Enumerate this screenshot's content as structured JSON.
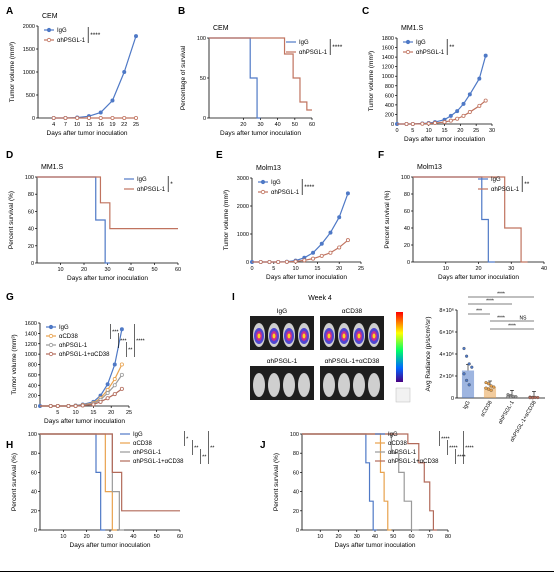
{
  "colors": {
    "igg": "#4f79c6",
    "hpsgl": "#c0735f",
    "cd38": "#e8a24e",
    "anti_psgl": "#9a9a9a",
    "combo": "#b26a5a"
  },
  "chart_data": [
    {
      "id": "A",
      "type": "line",
      "title": "CEM",
      "xlabel": "Days after tumor inoculation",
      "ylabel": "Tumor volume (mm³)",
      "xlim": [
        0,
        25
      ],
      "ylim": [
        0,
        2000
      ],
      "xticks": [
        4,
        7,
        10,
        13,
        16,
        19,
        22,
        25
      ],
      "yticks": [
        0,
        500,
        1000,
        1500,
        2000
      ],
      "series": [
        {
          "name": "IgG",
          "x": [
            4,
            7,
            10,
            13,
            16,
            19,
            22,
            25
          ],
          "y": [
            0,
            0,
            10,
            40,
            120,
            380,
            1000,
            1780
          ]
        },
        {
          "name": "αhPSGL-1",
          "x": [
            4,
            7,
            10,
            13,
            16,
            19,
            22,
            25
          ],
          "y": [
            0,
            0,
            0,
            0,
            0,
            0,
            0,
            0
          ]
        }
      ],
      "significance": "****"
    },
    {
      "id": "B",
      "type": "line",
      "title": "CEM",
      "xlabel": "Days after tumor inoculation",
      "ylabel": "Percentage of survival",
      "xlim": [
        0,
        60
      ],
      "ylim": [
        0,
        100
      ],
      "xticks": [
        20,
        30,
        40,
        50,
        60
      ],
      "yticks": [
        0,
        50,
        100
      ],
      "series": [
        {
          "name": "IgG",
          "x": [
            0,
            24,
            24,
            28,
            28,
            30
          ],
          "y": [
            100,
            100,
            50,
            50,
            0,
            0
          ]
        },
        {
          "name": "αhPSGL-1",
          "x": [
            0,
            44,
            44,
            49,
            49,
            53,
            53,
            57,
            57,
            62
          ],
          "y": [
            100,
            100,
            80,
            80,
            50,
            50,
            20,
            20,
            10,
            10
          ]
        }
      ],
      "significance": "****"
    },
    {
      "id": "C",
      "type": "line",
      "title": "MM1.S",
      "xlabel": "Days after tumor inoculation",
      "ylabel": "Tumor volume (mm³)",
      "xlim": [
        0,
        30
      ],
      "ylim": [
        0,
        1800
      ],
      "xticks": [
        0,
        5,
        10,
        15,
        20,
        25,
        30
      ],
      "yticks": [
        0,
        200,
        400,
        600,
        800,
        1000,
        1200,
        1400,
        1600,
        1800
      ],
      "series": [
        {
          "name": "IgG",
          "x": [
            0,
            3,
            5,
            8,
            10,
            12,
            15,
            17,
            19,
            21,
            23,
            26,
            28
          ],
          "y": [
            0,
            0,
            0,
            10,
            20,
            40,
            90,
            170,
            270,
            420,
            620,
            950,
            1430
          ]
        },
        {
          "name": "αhPSGL-1",
          "x": [
            0,
            3,
            5,
            8,
            10,
            12,
            15,
            17,
            19,
            21,
            23,
            26,
            28
          ],
          "y": [
            0,
            0,
            0,
            5,
            10,
            20,
            40,
            70,
            110,
            170,
            250,
            380,
            490
          ]
        }
      ],
      "significance": "**"
    },
    {
      "id": "D",
      "type": "line",
      "title": "MM1.S",
      "xlabel": "Days after tumor inoculation",
      "ylabel": "Percent survival (%)",
      "xlim": [
        0,
        60
      ],
      "ylim": [
        0,
        100
      ],
      "xticks": [
        10,
        20,
        30,
        40,
        50,
        60
      ],
      "yticks": [
        0,
        20,
        40,
        60,
        80,
        100
      ],
      "series": [
        {
          "name": "IgG",
          "x": [
            0,
            25,
            25,
            29,
            29,
            31
          ],
          "y": [
            100,
            100,
            50,
            50,
            0,
            0
          ]
        },
        {
          "name": "αhPSGL-1",
          "x": [
            0,
            27,
            27,
            31,
            31,
            60
          ],
          "y": [
            100,
            100,
            70,
            70,
            40,
            40
          ]
        }
      ],
      "significance": "*"
    },
    {
      "id": "E",
      "type": "line",
      "title": "Molm13",
      "xlabel": "Days after tumor inoculation",
      "ylabel": "Tumor volume (mm³)",
      "xlim": [
        0,
        25
      ],
      "ylim": [
        0,
        3000
      ],
      "xticks": [
        0,
        5,
        10,
        15,
        20,
        25
      ],
      "yticks": [
        0,
        1000,
        2000,
        3000
      ],
      "series": [
        {
          "name": "IgG",
          "x": [
            0,
            2,
            4,
            6,
            8,
            10,
            12,
            14,
            16,
            18,
            20,
            22
          ],
          "y": [
            0,
            0,
            0,
            0,
            10,
            50,
            150,
            330,
            650,
            1050,
            1600,
            2450
          ]
        },
        {
          "name": "αhPSGL-1",
          "x": [
            0,
            2,
            4,
            6,
            8,
            10,
            12,
            14,
            16,
            18,
            20,
            22
          ],
          "y": [
            0,
            0,
            0,
            0,
            5,
            20,
            60,
            120,
            220,
            330,
            520,
            780
          ]
        }
      ],
      "significance": "****"
    },
    {
      "id": "F",
      "type": "line",
      "title": "Molm13",
      "xlabel": "Days after tumor inoculation",
      "ylabel": "Percent survival (%)",
      "xlim": [
        0,
        40
      ],
      "ylim": [
        0,
        100
      ],
      "xticks": [
        10,
        20,
        30,
        40
      ],
      "yticks": [
        0,
        20,
        40,
        60,
        80,
        100
      ],
      "series": [
        {
          "name": "IgG",
          "x": [
            0,
            21,
            21,
            23,
            23,
            25
          ],
          "y": [
            100,
            100,
            50,
            50,
            0,
            0
          ]
        },
        {
          "name": "αhPSGL-1",
          "x": [
            0,
            28,
            28,
            33,
            33,
            35
          ],
          "y": [
            100,
            100,
            40,
            40,
            0,
            0
          ]
        }
      ],
      "significance": "**"
    },
    {
      "id": "G",
      "type": "line",
      "title": "",
      "xlabel": "Days after tumor inoculation",
      "ylabel": "Tumor volume (mm³)",
      "xlim": [
        0,
        25
      ],
      "ylim": [
        0,
        1600
      ],
      "xticks": [
        5,
        10,
        15,
        20,
        25
      ],
      "yticks": [
        0,
        200,
        400,
        600,
        800,
        1000,
        1200,
        1400,
        1600
      ],
      "series": [
        {
          "name": "IgG",
          "x": [
            0,
            3,
            5,
            8,
            10,
            12,
            15,
            17,
            19,
            21,
            23
          ],
          "y": [
            0,
            0,
            0,
            0,
            10,
            30,
            80,
            200,
            420,
            800,
            1480
          ]
        },
        {
          "name": "αCD38",
          "x": [
            0,
            3,
            5,
            8,
            10,
            12,
            15,
            17,
            19,
            21,
            23
          ],
          "y": [
            0,
            0,
            0,
            0,
            5,
            20,
            60,
            150,
            310,
            520,
            800
          ]
        },
        {
          "name": "αhPSGL-1",
          "x": [
            0,
            3,
            5,
            8,
            10,
            12,
            15,
            17,
            19,
            21,
            23
          ],
          "y": [
            0,
            0,
            0,
            0,
            5,
            15,
            50,
            120,
            250,
            400,
            600
          ]
        },
        {
          "name": "αhPSGL-1+αCD38",
          "x": [
            0,
            3,
            5,
            8,
            10,
            12,
            15,
            17,
            19,
            21,
            23
          ],
          "y": [
            0,
            0,
            0,
            0,
            0,
            10,
            30,
            80,
            150,
            230,
            330
          ]
        }
      ],
      "significance": [
        "***",
        "***",
        "**",
        "****"
      ]
    },
    {
      "id": "I",
      "type": "bar",
      "title": "",
      "xlabel": "",
      "ylabel": "Avg Radiance (p/s/cm²/sr)",
      "categories": [
        "IgG",
        "αCD38",
        "αhPSGL-1",
        "αhPSGL-1+αCD38"
      ],
      "values": [
        2500000,
        1000000,
        150000,
        50000
      ],
      "points": [
        [
          4500000,
          3800000,
          3100000,
          2800000,
          2200000,
          1600000,
          1200000
        ],
        [
          1400000,
          1300000,
          1100000,
          1000000,
          900000,
          800000,
          700000
        ],
        [
          300000,
          220000,
          150000,
          120000,
          100000,
          80000
        ],
        [
          80000,
          60000,
          50000,
          40000,
          30000,
          20000
        ]
      ],
      "ylim": [
        0,
        8000000
      ],
      "yticks": [
        0,
        2000000,
        4000000,
        6000000,
        8000000
      ],
      "yticklabels": [
        "0",
        "2×10⁶",
        "4×10⁶",
        "6×10⁶",
        "8×10⁶"
      ],
      "comparisons": [
        "****",
        "****",
        "****",
        "***",
        "NS",
        "****"
      ]
    },
    {
      "id": "H",
      "type": "line",
      "title": "",
      "xlabel": "Days after tumor inoculation",
      "ylabel": "Percent survival (%)",
      "xlim": [
        0,
        60
      ],
      "ylim": [
        0,
        100
      ],
      "xticks": [
        10,
        20,
        30,
        40,
        50,
        60
      ],
      "yticks": [
        0,
        20,
        40,
        60,
        80,
        100
      ],
      "series": [
        {
          "name": "IgG",
          "x": [
            0,
            24,
            24,
            26,
            26,
            28
          ],
          "y": [
            100,
            100,
            60,
            60,
            0,
            0
          ]
        },
        {
          "name": "αCD38",
          "x": [
            0,
            28,
            28,
            31,
            31,
            33
          ],
          "y": [
            100,
            100,
            40,
            40,
            0,
            0
          ]
        },
        {
          "name": "αhPSGL-1",
          "x": [
            0,
            31,
            31,
            34,
            34,
            36
          ],
          "y": [
            100,
            100,
            40,
            40,
            0,
            0
          ]
        },
        {
          "name": "αhPSGL-1+αCD38",
          "x": [
            0,
            31,
            31,
            35,
            35,
            60
          ],
          "y": [
            100,
            100,
            60,
            60,
            20,
            20
          ]
        }
      ],
      "significance": [
        "*",
        "**",
        "**",
        "**"
      ]
    },
    {
      "id": "J",
      "type": "line",
      "title": "",
      "xlabel": "Days after tumor inoculation",
      "ylabel": "Percent survival (%)",
      "xlim": [
        0,
        80
      ],
      "ylim": [
        0,
        100
      ],
      "xticks": [
        10,
        20,
        30,
        40,
        50,
        60,
        70,
        80
      ],
      "yticks": [
        0,
        20,
        40,
        60,
        80,
        100
      ],
      "series": [
        {
          "name": "IgG",
          "x": [
            0,
            35,
            35,
            37,
            37,
            39,
            39,
            41
          ],
          "y": [
            100,
            100,
            70,
            70,
            30,
            30,
            0,
            0
          ]
        },
        {
          "name": "αCD38",
          "x": [
            0,
            43,
            43,
            45,
            45,
            47,
            47,
            49
          ],
          "y": [
            100,
            100,
            60,
            60,
            30,
            30,
            0,
            0
          ]
        },
        {
          "name": "αhPSGL-1",
          "x": [
            0,
            49,
            49,
            53,
            53,
            56,
            56,
            60,
            60,
            64
          ],
          "y": [
            100,
            100,
            80,
            80,
            60,
            60,
            30,
            30,
            0,
            0
          ]
        },
        {
          "name": "αhPSGL-1+αCD38",
          "x": [
            0,
            58,
            58,
            64,
            64,
            67,
            67,
            70,
            70,
            72,
            72,
            74
          ],
          "y": [
            100,
            100,
            90,
            90,
            70,
            70,
            50,
            50,
            20,
            20,
            0,
            0
          ]
        }
      ],
      "significance": [
        "****",
        "****",
        "****",
        "****"
      ]
    }
  ],
  "panel_I_image": {
    "header": "Week 4",
    "labels": [
      "IgG",
      "αCD38",
      "αhPSGL-1",
      "αhPSGL-1+αCD38"
    ]
  }
}
